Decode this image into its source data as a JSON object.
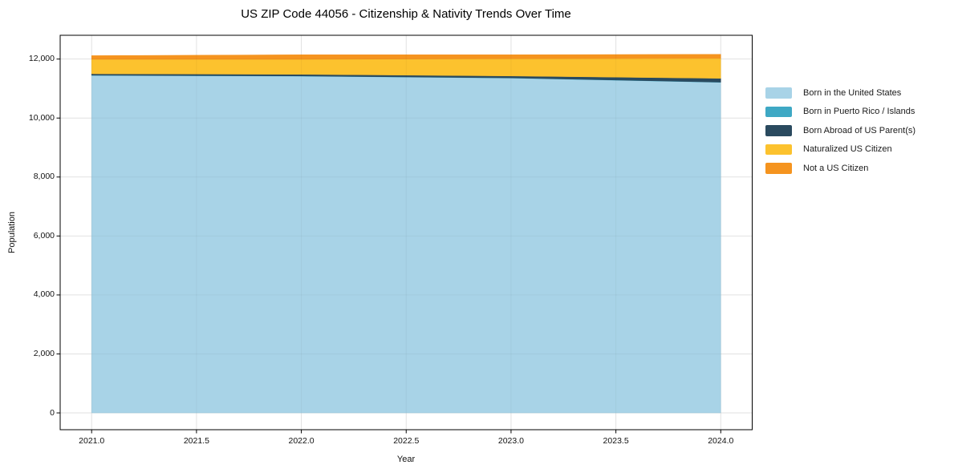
{
  "title": "US ZIP Code 44056 - Citizenship & Nativity Trends Over Time",
  "chart_data": {
    "type": "area",
    "stacked": true,
    "title": "US ZIP Code 44056 - Citizenship & Nativity Trends Over Time",
    "xlabel": "Year",
    "ylabel": "Population",
    "x": [
      2021,
      2022,
      2023,
      2024
    ],
    "series": [
      {
        "name": "Born in the United States",
        "color": "#a8d3e7",
        "values": [
          11445,
          11420,
          11355,
          11210
        ]
      },
      {
        "name": "Born in Puerto Rico / Islands",
        "color": "#3ea8c4",
        "values": [
          6,
          6,
          6,
          6
        ]
      },
      {
        "name": "Born Abroad of US Parent(s)",
        "color": "#2a4a5f",
        "values": [
          50,
          55,
          65,
          130
        ]
      },
      {
        "name": "Naturalized US Citizen",
        "color": "#fcc22e",
        "values": [
          490,
          510,
          585,
          680
        ]
      },
      {
        "name": "Not a US Citizen",
        "color": "#f5941f",
        "values": [
          125,
          155,
          135,
          135
        ]
      }
    ],
    "x_ticks": [
      {
        "value": 2021.0,
        "label": "2021.0"
      },
      {
        "value": 2021.5,
        "label": "2021.5"
      },
      {
        "value": 2022.0,
        "label": "2022.0"
      },
      {
        "value": 2022.5,
        "label": "2022.5"
      },
      {
        "value": 2023.0,
        "label": "2023.0"
      },
      {
        "value": 2023.5,
        "label": "2023.5"
      },
      {
        "value": 2024.0,
        "label": "2024.0"
      }
    ],
    "y_ticks": [
      {
        "value": 0,
        "label": "0"
      },
      {
        "value": 2000,
        "label": "2,000"
      },
      {
        "value": 4000,
        "label": "4,000"
      },
      {
        "value": 6000,
        "label": "6,000"
      },
      {
        "value": 8000,
        "label": "8,000"
      },
      {
        "value": 10000,
        "label": "10,000"
      },
      {
        "value": 12000,
        "label": "12,000"
      }
    ],
    "xlim": [
      2020.85,
      2024.15
    ],
    "ylim": [
      -570,
      12807
    ],
    "grid": true,
    "legend_position": "right-outside",
    "colors": {
      "spine": "#000000",
      "gridline": "#ebebeb",
      "tick": "#000000",
      "text": "#111111"
    }
  }
}
